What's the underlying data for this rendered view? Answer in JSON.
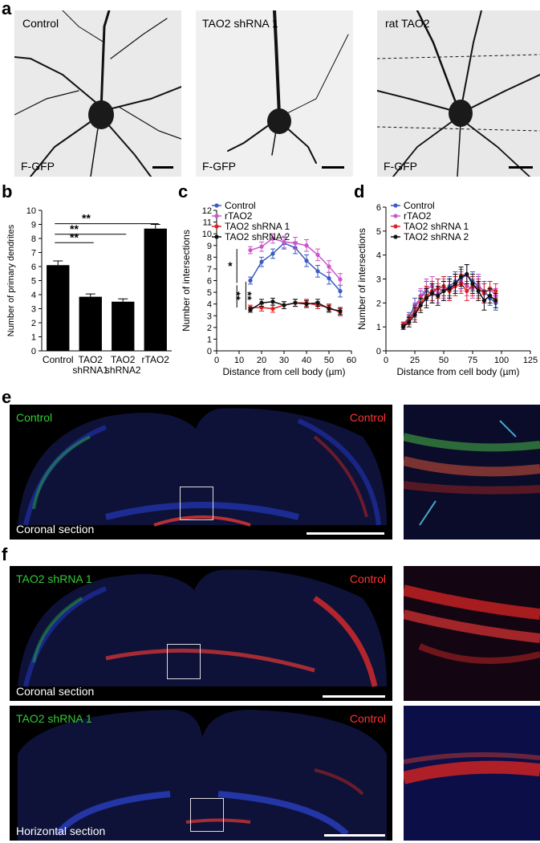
{
  "panels": {
    "a": {
      "letter": "a",
      "images": [
        {
          "title": "Control",
          "marker": "F-GFP"
        },
        {
          "title": "TAO2 shRNA 1",
          "marker": "F-GFP"
        },
        {
          "title": "rat TAO2",
          "marker": "F-GFP"
        }
      ]
    },
    "e": {
      "letter": "e",
      "left_label": "Control",
      "right_label": "Control",
      "section_label": "Coronal section"
    },
    "f": {
      "letter": "f",
      "top": {
        "left_label": "TAO2 shRNA 1",
        "right_label": "Control",
        "section_label": "Coronal section"
      },
      "bottom": {
        "left_label": "TAO2 shRNA 1",
        "right_label": "Control",
        "section_label": "Horizontal section"
      }
    }
  },
  "chart_data": [
    {
      "panel": "b",
      "type": "bar",
      "categories": [
        "Control",
        "TAO2\nshRNA1",
        "TAO2\nshRNA2",
        "rTAO2"
      ],
      "category_lines": [
        [
          "Control"
        ],
        [
          "TAO2",
          "shRNA1"
        ],
        [
          "TAO2",
          "shRNA2"
        ],
        [
          "rTAO2"
        ]
      ],
      "values": [
        6.1,
        3.85,
        3.5,
        8.7
      ],
      "errors": [
        0.3,
        0.2,
        0.2,
        0.3
      ],
      "ylabel": "Number of primary dendrites",
      "ylim": [
        0,
        10
      ],
      "yticks": [
        0,
        1,
        2,
        3,
        4,
        5,
        6,
        7,
        8,
        9,
        10
      ],
      "significance": [
        {
          "from": 0,
          "to": 1,
          "label": "**"
        },
        {
          "from": 0,
          "to": 2,
          "label": "**"
        },
        {
          "from": 0,
          "to": 3,
          "label": "**"
        }
      ]
    },
    {
      "panel": "c",
      "type": "line",
      "xlabel": "Distance from cell body (µm)",
      "ylabel": "Number of intersections",
      "xlim": [
        0,
        60
      ],
      "ylim": [
        0,
        12
      ],
      "xticks": [
        0,
        10,
        20,
        30,
        40,
        50,
        60
      ],
      "yticks": [
        0,
        1,
        2,
        3,
        4,
        5,
        6,
        7,
        8,
        9,
        10,
        11,
        12
      ],
      "x": [
        15,
        20,
        25,
        30,
        35,
        40,
        45,
        50,
        55
      ],
      "series": [
        {
          "name": "Control",
          "color": "#3a5bbf",
          "values": [
            6.0,
            7.6,
            8.3,
            9.2,
            8.8,
            7.7,
            6.8,
            6.2,
            5.1
          ],
          "errors": [
            0.3,
            0.4,
            0.4,
            0.5,
            0.5,
            0.5,
            0.5,
            0.5,
            0.5
          ]
        },
        {
          "name": "rTAO2",
          "color": "#cc55cc",
          "values": [
            8.6,
            8.9,
            9.6,
            9.3,
            9.2,
            9.0,
            8.2,
            7.2,
            6.1
          ],
          "errors": [
            0.3,
            0.4,
            0.4,
            0.5,
            0.5,
            0.5,
            0.5,
            0.5,
            0.5
          ]
        },
        {
          "name": "TAO2 shRNA 1",
          "color": "#e02020",
          "values": [
            3.7,
            3.7,
            3.6,
            3.9,
            4.1,
            4.1,
            3.9,
            3.7,
            3.3
          ],
          "errors": [
            0.2,
            0.3,
            0.3,
            0.3,
            0.3,
            0.3,
            0.3,
            0.3,
            0.3
          ]
        },
        {
          "name": "TAO2 shRNA 2",
          "color": "#111111",
          "values": [
            3.5,
            4.1,
            4.2,
            3.9,
            4.1,
            4.0,
            4.1,
            3.6,
            3.4
          ],
          "errors": [
            0.2,
            0.3,
            0.3,
            0.3,
            0.3,
            0.3,
            0.3,
            0.3,
            0.3
          ]
        }
      ],
      "significance": [
        "*",
        "**",
        "**"
      ]
    },
    {
      "panel": "d",
      "type": "line",
      "xlabel": "Distance from cell body (µm)",
      "ylabel": "Number of intersections",
      "xlim": [
        0,
        125
      ],
      "ylim": [
        0,
        6
      ],
      "xticks": [
        0,
        25,
        50,
        75,
        100,
        125
      ],
      "yticks": [
        0,
        1,
        2,
        3,
        4,
        5,
        6
      ],
      "x": [
        15,
        20,
        25,
        30,
        35,
        40,
        45,
        50,
        55,
        60,
        65,
        70,
        75,
        80,
        85,
        90,
        95
      ],
      "series": [
        {
          "name": "Control",
          "color": "#3a5bbf",
          "values": [
            1.1,
            1.4,
            1.9,
            2.2,
            2.5,
            2.4,
            2.6,
            2.5,
            2.7,
            2.9,
            3.0,
            3.2,
            2.9,
            2.7,
            2.5,
            2.2,
            2.0
          ],
          "errors": [
            0.1,
            0.2,
            0.3,
            0.3,
            0.4,
            0.4,
            0.4,
            0.4,
            0.4,
            0.4,
            0.4,
            0.4,
            0.4,
            0.4,
            0.4,
            0.3,
            0.3
          ]
        },
        {
          "name": "rTAO2",
          "color": "#cc55cc",
          "values": [
            1.0,
            1.3,
            1.7,
            2.3,
            2.6,
            2.7,
            2.4,
            2.6,
            2.5,
            2.8,
            2.9,
            2.7,
            2.6,
            2.8,
            2.4,
            2.6,
            2.3
          ],
          "errors": [
            0.1,
            0.2,
            0.3,
            0.3,
            0.4,
            0.4,
            0.4,
            0.4,
            0.4,
            0.4,
            0.4,
            0.4,
            0.4,
            0.4,
            0.4,
            0.3,
            0.3
          ]
        },
        {
          "name": "TAO2 shRNA 1",
          "color": "#e02020",
          "values": [
            1.1,
            1.3,
            1.6,
            2.0,
            2.3,
            2.5,
            2.6,
            2.7,
            2.5,
            2.7,
            2.8,
            2.5,
            2.7,
            2.6,
            2.4,
            2.6,
            2.5
          ],
          "errors": [
            0.1,
            0.2,
            0.3,
            0.3,
            0.4,
            0.4,
            0.4,
            0.4,
            0.4,
            0.4,
            0.4,
            0.4,
            0.4,
            0.4,
            0.4,
            0.3,
            0.3
          ]
        },
        {
          "name": "TAO2 shRNA 2",
          "color": "#111111",
          "values": [
            1.0,
            1.2,
            1.5,
            1.9,
            2.2,
            2.4,
            2.3,
            2.5,
            2.6,
            2.8,
            3.1,
            3.2,
            2.8,
            2.5,
            2.1,
            2.3,
            2.1
          ],
          "errors": [
            0.1,
            0.2,
            0.3,
            0.3,
            0.4,
            0.4,
            0.4,
            0.4,
            0.4,
            0.4,
            0.4,
            0.4,
            0.4,
            0.4,
            0.4,
            0.3,
            0.3
          ]
        }
      ]
    }
  ]
}
